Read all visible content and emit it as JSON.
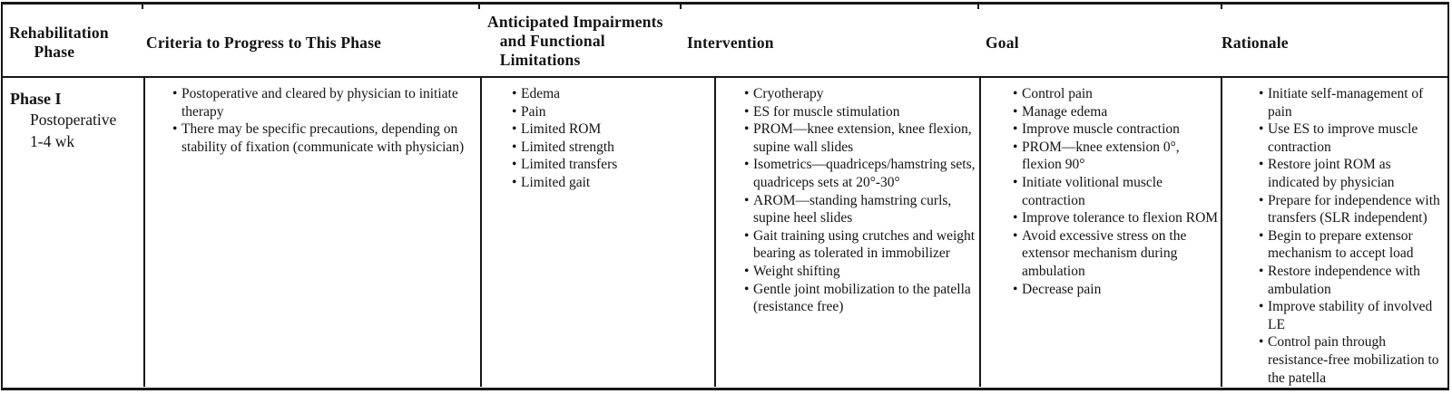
{
  "ink_color": "#161616",
  "table": {
    "headers": {
      "phase": "Rehabilitation\n      Phase",
      "criteria": "Criteria to Progress to This Phase",
      "impairments": "Anticipated Impairments\n   and Functional\n   Limitations",
      "intervention": "Intervention",
      "goal": "Goal",
      "rationale": "Rationale"
    },
    "row": {
      "phase": {
        "title": "Phase I",
        "subtitle": "Postoperative\n1-4 wk"
      },
      "criteria": [
        "Postoperative and cleared by physician to initiate therapy",
        "There may be specific precautions, depending on stability of fixation (communicate with physician)"
      ],
      "impairments": [
        "Edema",
        "Pain",
        "Limited ROM",
        "Limited strength",
        "Limited transfers",
        "Limited gait"
      ],
      "intervention": [
        "Cryotherapy",
        "ES for muscle stimulation",
        "PROM—knee extension, knee flexion, supine wall slides",
        "Isometrics—quadriceps/hamstring sets, quadriceps sets at 20°-30°",
        "AROM—standing hamstring curls, supine heel slides",
        "Gait training using crutches and weight bearing as tolerated in immobilizer",
        "Weight shifting",
        "Gentle joint mobilization to the patella (resistance free)"
      ],
      "goal": [
        "Control pain",
        "Manage edema",
        "Improve muscle contraction",
        "PROM—knee extension 0°, flexion 90°",
        "Initiate volitional muscle contraction",
        "Improve tolerance to flexion ROM",
        "Avoid excessive stress on the extensor mechanism during ambulation",
        "Decrease pain"
      ],
      "rationale": [
        "Initiate self-management of pain",
        "Use ES to improve muscle contraction",
        "Restore joint ROM as indicated by physician",
        "Prepare for independence with transfers (SLR independent)",
        "Begin to prepare extensor mechanism to accept load",
        "Restore independence with ambulation",
        "Improve stability of involved LE",
        "Control pain through resistance-free mobilization to the patella"
      ]
    }
  }
}
